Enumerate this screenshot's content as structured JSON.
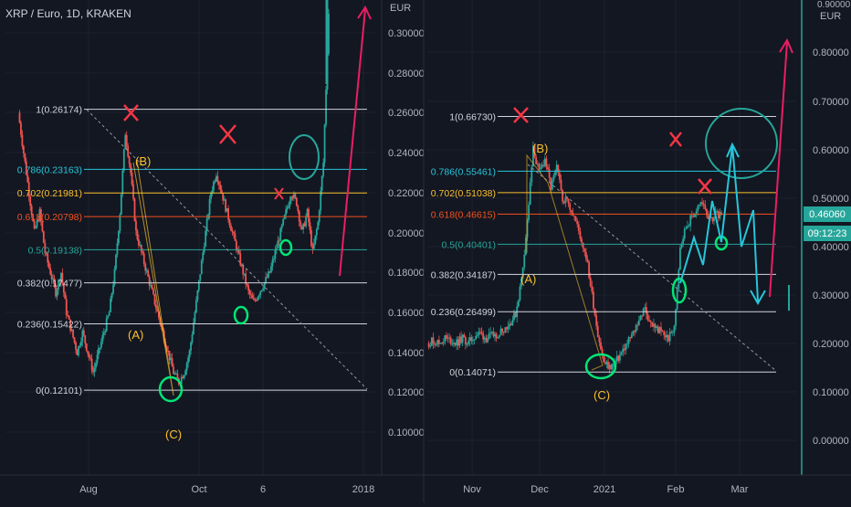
{
  "chart_data": [
    {
      "type": "candlestick",
      "title": "XRP / Euro, 1D, KRAKEN",
      "currency": "EUR",
      "y_ticks": [
        "0.30000",
        "0.28000",
        "0.26000",
        "0.24000",
        "0.22000",
        "0.20000",
        "0.18000",
        "0.16000",
        "0.14000",
        "0.12000",
        "0.10000"
      ],
      "y_range": [
        0.096,
        0.318
      ],
      "x_ticks": [
        "Aug",
        "Oct",
        "6",
        "2018"
      ],
      "fib_levels": [
        {
          "label": "1(0.26174)",
          "value": 0.26174,
          "color": "#d1d4dc"
        },
        {
          "label": "0.786(0.23163)",
          "value": 0.23163,
          "color": "#26c6da"
        },
        {
          "label": "0.702(0.21981)",
          "value": 0.21981,
          "color": "#fbc02d"
        },
        {
          "label": "0.618(0.20798)",
          "value": 0.20798,
          "color": "#f4511e"
        },
        {
          "label": "0.5(0.19138)",
          "value": 0.19138,
          "color": "#26a69a"
        },
        {
          "label": "0.382(0.17477)",
          "value": 0.17477,
          "color": "#d1d4dc"
        },
        {
          "label": "0.236(0.15422)",
          "value": 0.15422,
          "color": "#d1d4dc"
        },
        {
          "label": "0(0.12101)",
          "value": 0.12101,
          "color": "#d1d4dc"
        }
      ],
      "wave_labels": [
        "(B)",
        "(A)",
        "(C)"
      ],
      "close_path": [
        0.26,
        0.24,
        0.22,
        0.2,
        0.21,
        0.19,
        0.18,
        0.17,
        0.18,
        0.16,
        0.15,
        0.14,
        0.15,
        0.14,
        0.13,
        0.14,
        0.15,
        0.16,
        0.18,
        0.21,
        0.25,
        0.23,
        0.2,
        0.19,
        0.18,
        0.17,
        0.16,
        0.15,
        0.14,
        0.13,
        0.125,
        0.13,
        0.14,
        0.16,
        0.18,
        0.2,
        0.22,
        0.23,
        0.22,
        0.21,
        0.2,
        0.19,
        0.18,
        0.17,
        0.165,
        0.17,
        0.175,
        0.18,
        0.19,
        0.2,
        0.21,
        0.22,
        0.215,
        0.2,
        0.21,
        0.19,
        0.205,
        0.235,
        0.31
      ]
    },
    {
      "type": "candlestick",
      "title": "",
      "currency": "EUR",
      "y_ticks": [
        "0.80000",
        "0.70000",
        "0.60000",
        "0.50000",
        "0.40000",
        "0.30000",
        "0.20000",
        "0.10000",
        "0.00000"
      ],
      "y_top_partial": "0.90000",
      "y_range": [
        -0.03,
        0.9
      ],
      "x_ticks": [
        "Nov",
        "Dec",
        "2021",
        "Feb",
        "Mar"
      ],
      "price_label": "0.46060",
      "countdown_label": "09:12:23",
      "fib_levels": [
        {
          "label": "1(0.66730)",
          "value": 0.6673,
          "color": "#d1d4dc"
        },
        {
          "label": "0.786(0.55461)",
          "value": 0.55461,
          "color": "#26c6da"
        },
        {
          "label": "0.702(0.51038)",
          "value": 0.51038,
          "color": "#fbc02d"
        },
        {
          "label": "0.618(0.46615)",
          "value": 0.46615,
          "color": "#f4511e"
        },
        {
          "label": "0.5(0.40401)",
          "value": 0.40401,
          "color": "#26a69a"
        },
        {
          "label": "0.382(0.34187)",
          "value": 0.34187,
          "color": "#d1d4dc"
        },
        {
          "label": "0.236(0.26499)",
          "value": 0.26499,
          "color": "#d1d4dc"
        },
        {
          "label": "0(0.14071)",
          "value": 0.14071,
          "color": "#d1d4dc"
        }
      ],
      "wave_labels": [
        "(B)",
        "(A)",
        "(C)"
      ],
      "close_path": [
        0.2,
        0.205,
        0.2,
        0.21,
        0.205,
        0.2,
        0.21,
        0.2,
        0.215,
        0.22,
        0.21,
        0.215,
        0.22,
        0.23,
        0.24,
        0.26,
        0.33,
        0.45,
        0.6,
        0.55,
        0.58,
        0.52,
        0.56,
        0.5,
        0.49,
        0.46,
        0.42,
        0.38,
        0.3,
        0.22,
        0.16,
        0.15,
        0.16,
        0.18,
        0.2,
        0.22,
        0.25,
        0.27,
        0.24,
        0.23,
        0.22,
        0.21,
        0.23,
        0.4,
        0.44,
        0.46,
        0.48,
        0.49,
        0.45,
        0.47,
        0.46
      ]
    }
  ],
  "colors": {
    "background": "#131722",
    "up": "#26a69a",
    "down": "#ef5350",
    "grid": "#1e222d",
    "axis_text": "#b2b5be",
    "cross": "#f23645",
    "wave_label": "#fbc02d",
    "marker_circle": "#00e676",
    "target_circle": "#26a69a",
    "arrow_pink": "#e91e63",
    "price_badge": "#26a69a"
  }
}
